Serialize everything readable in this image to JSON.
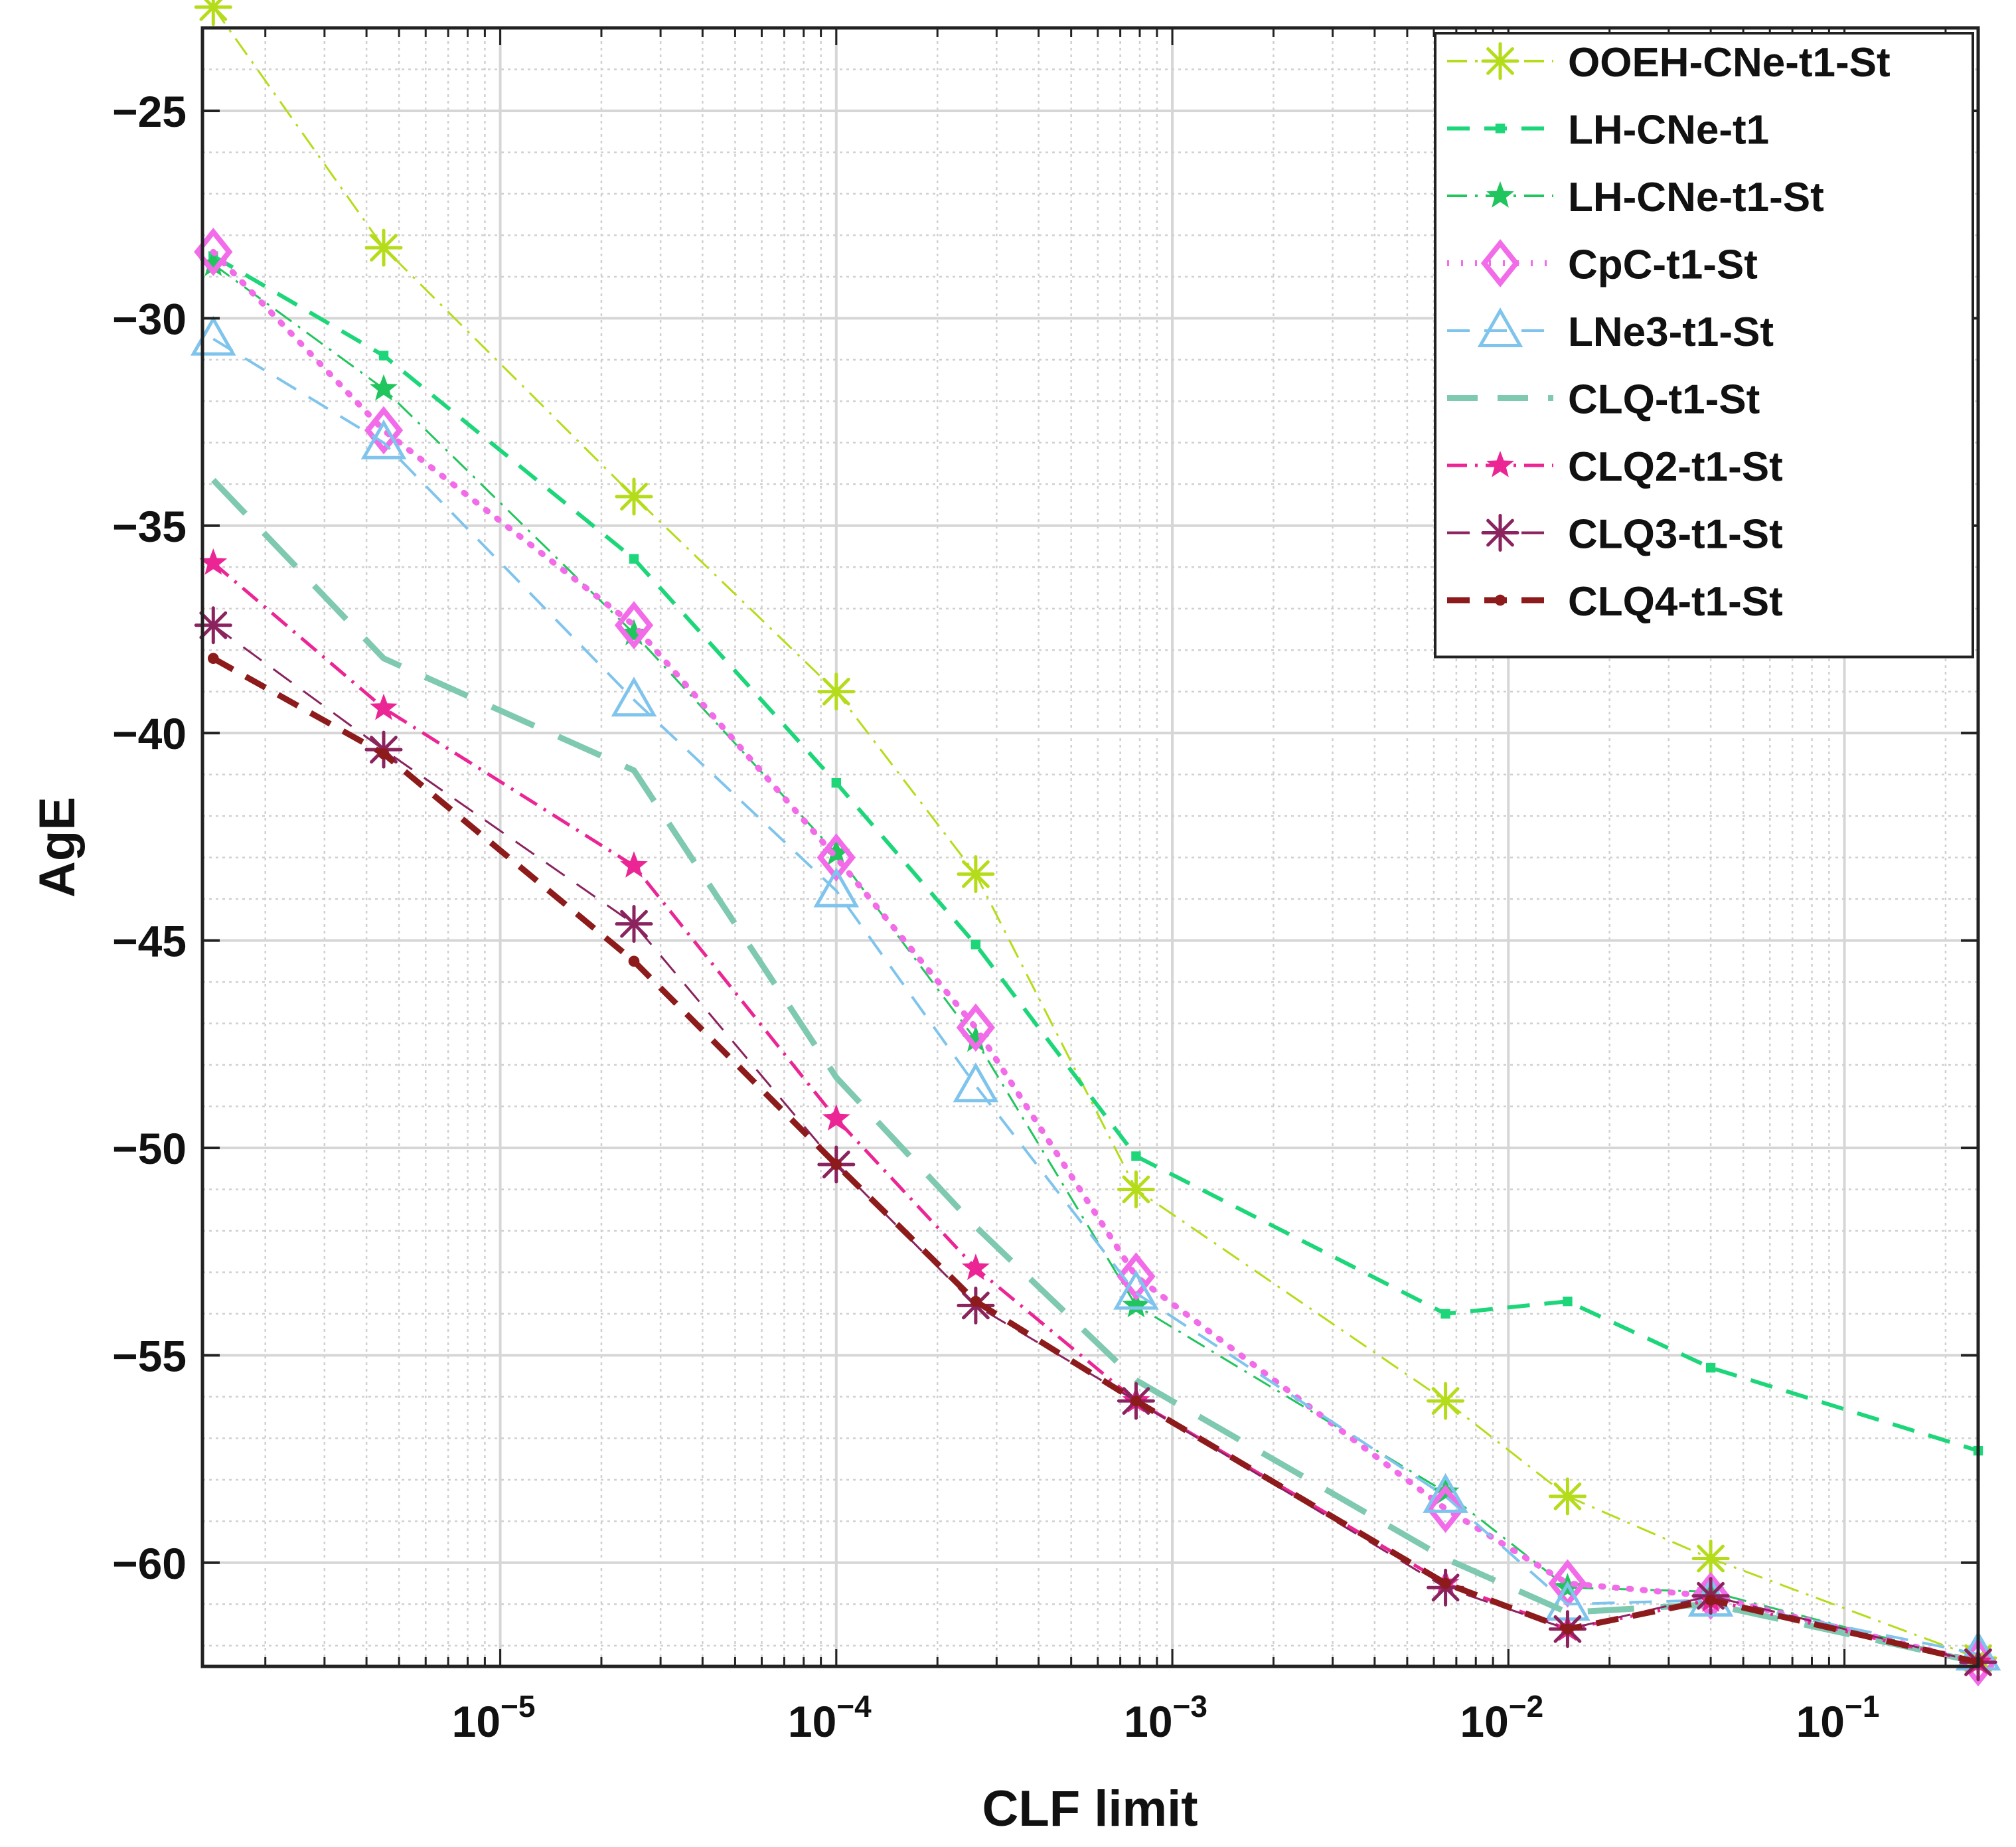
{
  "chart_data": {
    "type": "line",
    "xscale": "log",
    "xlabel": "CLF limit",
    "ylabel": "AgE",
    "xlim": [
      1.3e-06,
      0.25
    ],
    "ylim": [
      -62.5,
      -23
    ],
    "yticks": [
      -60,
      -55,
      -50,
      -45,
      -40,
      -35,
      -30,
      -25
    ],
    "ytick_labels": [
      "−60",
      "−55",
      "−50",
      "−45",
      "−40",
      "−35",
      "−30",
      "−25"
    ],
    "xticks": [
      {
        "value": 1e-05,
        "base": "10",
        "exp": "−5"
      },
      {
        "value": 0.0001,
        "base": "10",
        "exp": "−4"
      },
      {
        "value": 0.001,
        "base": "10",
        "exp": "−3"
      },
      {
        "value": 0.01,
        "base": "10",
        "exp": "−2"
      },
      {
        "value": 0.1,
        "base": "10",
        "exp": "−1"
      }
    ],
    "grid": true,
    "legend_position": "top-right",
    "x": [
      1.4e-06,
      4.5e-06,
      2.5e-05,
      0.0001,
      0.00026,
      0.00078,
      0.0065,
      0.015,
      0.04,
      0.25
    ],
    "series": [
      {
        "name": "OOEH-CNe-t1-St",
        "color": "#b5dc1a",
        "marker": "asterisk",
        "dash": "dashdot",
        "width": 3,
        "values": [
          -22.5,
          -28.3,
          -34.3,
          -39.0,
          -43.4,
          -51.0,
          -56.1,
          -58.4,
          -59.9,
          -62.3
        ]
      },
      {
        "name": "LH-CNe-t1",
        "color": "#1ed67a",
        "marker": "square",
        "dash": "dash",
        "width": 6,
        "values": [
          -28.5,
          -30.9,
          -35.8,
          -41.2,
          -45.1,
          -50.2,
          -54.0,
          -53.7,
          -55.3,
          -57.3
        ]
      },
      {
        "name": "LH-CNe-t1-St",
        "color": "#21c55d",
        "marker": "star",
        "dash": "dashdot",
        "width": 3,
        "values": [
          -28.7,
          -31.7,
          -37.6,
          -42.9,
          -47.4,
          -53.8,
          -58.3,
          -60.6,
          -60.7,
          -62.4
        ]
      },
      {
        "name": "CpC-t1-St",
        "color": "#f26be8",
        "marker": "diamond",
        "dash": "dot",
        "width": 9,
        "values": [
          -28.4,
          -32.7,
          -37.4,
          -43.0,
          -47.1,
          -53.1,
          -58.7,
          -60.5,
          -60.8,
          -62.4
        ]
      },
      {
        "name": "LNe3-t1-St",
        "color": "#7fc4ec",
        "marker": "triangle",
        "dash": "dash",
        "width": 4,
        "values": [
          -30.5,
          -33.0,
          -39.2,
          -43.8,
          -48.5,
          -53.5,
          -58.4,
          -61.0,
          -60.9,
          -62.2
        ]
      },
      {
        "name": "CLQ-t1-St",
        "color": "#7ec9b0",
        "marker": "none",
        "dash": "longdash",
        "width": 9,
        "values": [
          -33.9,
          -38.2,
          -40.9,
          -48.3,
          -51.9,
          -55.6,
          -59.9,
          -61.2,
          -61.0,
          -62.4
        ]
      },
      {
        "name": "CLQ2-t1-St",
        "color": "#ec2594",
        "marker": "star",
        "dash": "dashdot",
        "width": 5,
        "values": [
          -35.9,
          -39.4,
          -43.2,
          -49.3,
          -52.9,
          -56.1,
          -60.5,
          -61.6,
          -60.9,
          -62.4
        ]
      },
      {
        "name": "CLQ3-t1-St",
        "color": "#8a235e",
        "marker": "asterisk",
        "dash": "dash",
        "width": 3,
        "values": [
          -37.4,
          -40.4,
          -44.6,
          -50.4,
          -53.8,
          -56.1,
          -60.6,
          -61.6,
          -60.8,
          -62.4
        ]
      },
      {
        "name": "CLQ4-t1-St",
        "color": "#8e1b1b",
        "marker": "dot",
        "dash": "dash",
        "width": 9,
        "values": [
          -38.2,
          -40.5,
          -45.5,
          -50.4,
          -53.7,
          -56.1,
          -60.5,
          -61.6,
          -60.9,
          -62.4
        ]
      }
    ]
  }
}
